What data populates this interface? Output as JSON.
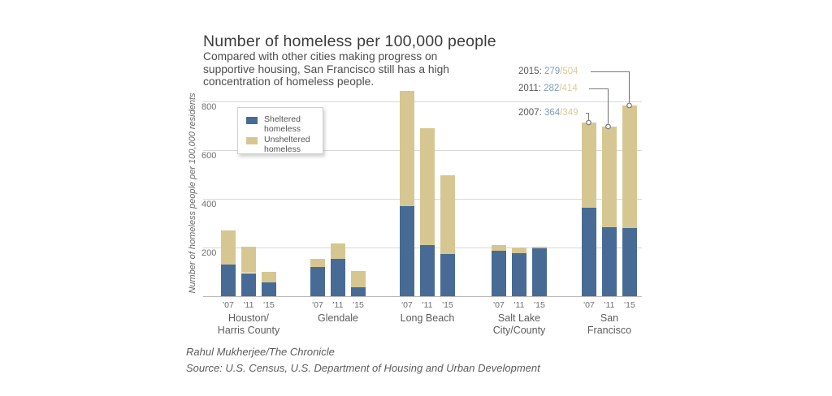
{
  "title": "Number of homeless per 100,000 people",
  "subtitle": [
    "Compared with other cities making progress on",
    "supportive housing, San Francisco still has a high",
    "concentration of homeless people."
  ],
  "y_axis_title": "Number of homeless people per 100,000 residents",
  "legend": {
    "sheltered_label": "Sheltered homeless",
    "unsheltered_label": "Unsheltered homeless"
  },
  "annotations": [
    {
      "year": "2015:",
      "sheltered": "279",
      "slash": "/",
      "unsheltered": "504"
    },
    {
      "year": "2011:",
      "sheltered": "282",
      "slash": "/",
      "unsheltered": "414"
    },
    {
      "year": "2007:",
      "sheltered": "364",
      "slash": "/",
      "unsheltered": "349"
    }
  ],
  "footer": {
    "credit": "Rahul Mukherjee/The Chronicle",
    "source": "Source: U.S. Census, U.S. Department of Housing and Urban Development"
  },
  "colors": {
    "sheltered": "#476b94",
    "unsheltered": "#d6c792",
    "gridline": "#d8d8d8",
    "baseline": "#b9b9b9",
    "annotation_sheltered_text": "#7d9cc0",
    "annotation_unsheltered_text": "#d9cb97",
    "callout_line": "#7a7a7a"
  },
  "chart_data": {
    "type": "bar",
    "stacked": true,
    "title": "Number of homeless per 100,000 people",
    "ylabel": "Number of homeless people per 100,000 residents",
    "yticks": [
      200,
      400,
      600,
      800
    ],
    "ylim": [
      0,
      866
    ],
    "grid": true,
    "legend_position": "upper-left-inside",
    "series_names": [
      "Sheltered homeless",
      "Unsheltered homeless"
    ],
    "x_tick_years": [
      "'07",
      "'11",
      "'15"
    ],
    "groups": [
      {
        "label": [
          "Houston/",
          "Harris County"
        ],
        "years": [
          "'07",
          "'11",
          "'15"
        ],
        "sheltered": [
          130,
          95,
          56
        ],
        "unsheltered": [
          140,
          107,
          44
        ]
      },
      {
        "label": [
          "Glendale"
        ],
        "years": [
          "'07",
          "'11",
          "'15"
        ],
        "sheltered": [
          121,
          154,
          38
        ],
        "unsheltered": [
          31,
          62,
          64
        ]
      },
      {
        "label": [
          "Long Beach"
        ],
        "years": [
          "'07",
          "'11",
          "'15"
        ],
        "sheltered": [
          369,
          209,
          172
        ],
        "unsheltered": [
          476,
          481,
          326
        ]
      },
      {
        "label": [
          "Salt Lake",
          "City/County"
        ],
        "years": [
          "'07",
          "'11",
          "'15"
        ],
        "sheltered": [
          188,
          177,
          196
        ],
        "unsheltered": [
          22,
          23,
          8
        ]
      },
      {
        "label": [
          "San",
          "Francisco"
        ],
        "years": [
          "'07",
          "'11",
          "'15"
        ],
        "sheltered": [
          364,
          282,
          279
        ],
        "unsheltered": [
          349,
          414,
          504
        ]
      }
    ],
    "san_francisco_callouts": [
      {
        "year": "2015",
        "sheltered": 279,
        "unsheltered": 504
      },
      {
        "year": "2011",
        "sheltered": 282,
        "unsheltered": 414
      },
      {
        "year": "2007",
        "sheltered": 364,
        "unsheltered": 349
      }
    ]
  }
}
